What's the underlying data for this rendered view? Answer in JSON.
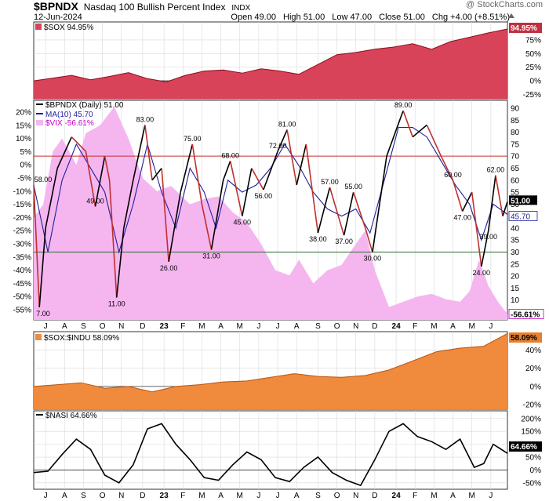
{
  "header": {
    "symbol": "$BPNDX",
    "name": "Nasdaq 100 Bullish Percent Index",
    "exchange": "INDX",
    "date": "12-Jun-2024",
    "open_label": "Open",
    "open": "49.00",
    "high_label": "High",
    "high": "51.00",
    "low_label": "Low",
    "low": "47.00",
    "close_label": "Close",
    "close": "51.00",
    "chg_label": "Chg",
    "chg": "+4.00 (+8.51%)",
    "watermark": "@ StockCharts.com"
  },
  "colors": {
    "sox_fill": "#d8435a",
    "sox_line": "#8a1020",
    "bpndx_line": "#000000",
    "ma_line": "#1f1f9a",
    "vix_fill": "#f5b6f0",
    "vix_text": "#c000c0",
    "ratio_fill": "#f08a3c",
    "ratio_line": "#b85510",
    "nasi_line": "#000000",
    "hline_red": "#c0302c",
    "hline_green": "#2a6a2a",
    "grid": "#d9d9d9",
    "panel_bg": "#ffffff"
  },
  "chart_data": [
    {
      "id": "sox",
      "type": "area",
      "legend": "$SOX 94.95%",
      "last_label": "94.95%",
      "y_ticks": [
        "75%",
        "50%",
        "25%",
        "0%",
        "-25%"
      ],
      "y_tick_values": [
        75,
        50,
        25,
        0,
        -25
      ],
      "ylim": [
        -33,
        108
      ],
      "x": [
        0,
        0.04,
        0.08,
        0.12,
        0.16,
        0.2,
        0.24,
        0.28,
        0.32,
        0.36,
        0.4,
        0.44,
        0.48,
        0.52,
        0.56,
        0.6,
        0.64,
        0.68,
        0.72,
        0.76,
        0.8,
        0.84,
        0.88,
        0.92,
        0.96,
        1.0
      ],
      "values": [
        0,
        5,
        10,
        2,
        8,
        15,
        4,
        -2,
        10,
        18,
        20,
        14,
        22,
        18,
        12,
        30,
        48,
        52,
        58,
        62,
        68,
        58,
        72,
        80,
        88,
        95
      ]
    },
    {
      "id": "bpndx",
      "type": "line",
      "legend": [
        "$BPNDX (Daily) 51.00",
        "MA(10) 45.70",
        "$VIX -56.61%"
      ],
      "left_ticks": [
        "20%",
        "15%",
        "10%",
        "5%",
        "0%",
        "-5%",
        "-10%",
        "-15%",
        "-20%",
        "-25%",
        "-30%",
        "-35%",
        "-40%",
        "-45%",
        "-50%",
        "-55%"
      ],
      "left_tick_values": [
        20,
        15,
        10,
        5,
        0,
        -5,
        -10,
        -15,
        -20,
        -25,
        -30,
        -35,
        -40,
        -45,
        -50,
        -55
      ],
      "left_ylim": [
        -57.5,
        22.5
      ],
      "right_ticks": [
        "90",
        "85",
        "80",
        "75",
        "70",
        "65",
        "60",
        "55",
        "50",
        "45",
        "40",
        "35",
        "30",
        "25",
        "20",
        "15",
        "10",
        "5"
      ],
      "right_tick_values": [
        90,
        85,
        80,
        75,
        70,
        65,
        60,
        55,
        50,
        45,
        40,
        35,
        30,
        25,
        20,
        15,
        10,
        5
      ],
      "last_labels": [
        "51.00",
        "45.70",
        "-56.61%"
      ],
      "vix_last": -56.61,
      "bpndx_last": 51,
      "ma_last": 45.7,
      "hline_upper": 70,
      "hline_lower": 30,
      "bpndx_points": [
        {
          "x": 0.0,
          "v": 58
        },
        {
          "x": 0.012,
          "v": 7
        },
        {
          "x": 0.025,
          "v": 40
        },
        {
          "x": 0.05,
          "v": 65
        },
        {
          "x": 0.08,
          "v": 78
        },
        {
          "x": 0.11,
          "v": 72
        },
        {
          "x": 0.13,
          "v": 49
        },
        {
          "x": 0.15,
          "v": 70
        },
        {
          "x": 0.16,
          "v": 60
        },
        {
          "x": 0.175,
          "v": 11
        },
        {
          "x": 0.19,
          "v": 40
        },
        {
          "x": 0.21,
          "v": 60
        },
        {
          "x": 0.235,
          "v": 83
        },
        {
          "x": 0.25,
          "v": 60
        },
        {
          "x": 0.27,
          "v": 65
        },
        {
          "x": 0.285,
          "v": 26
        },
        {
          "x": 0.31,
          "v": 55
        },
        {
          "x": 0.335,
          "v": 75
        },
        {
          "x": 0.355,
          "v": 50
        },
        {
          "x": 0.375,
          "v": 31
        },
        {
          "x": 0.4,
          "v": 60
        },
        {
          "x": 0.415,
          "v": 68
        },
        {
          "x": 0.44,
          "v": 45
        },
        {
          "x": 0.46,
          "v": 65
        },
        {
          "x": 0.485,
          "v": 56
        },
        {
          "x": 0.515,
          "v": 72
        },
        {
          "x": 0.535,
          "v": 81
        },
        {
          "x": 0.555,
          "v": 58
        },
        {
          "x": 0.575,
          "v": 75
        },
        {
          "x": 0.6,
          "v": 38
        },
        {
          "x": 0.625,
          "v": 57
        },
        {
          "x": 0.655,
          "v": 37
        },
        {
          "x": 0.675,
          "v": 55
        },
        {
          "x": 0.7,
          "v": 40
        },
        {
          "x": 0.715,
          "v": 30
        },
        {
          "x": 0.745,
          "v": 70
        },
        {
          "x": 0.78,
          "v": 89
        },
        {
          "x": 0.8,
          "v": 78
        },
        {
          "x": 0.83,
          "v": 83
        },
        {
          "x": 0.86,
          "v": 70
        },
        {
          "x": 0.885,
          "v": 60
        },
        {
          "x": 0.905,
          "v": 47
        },
        {
          "x": 0.925,
          "v": 55
        },
        {
          "x": 0.945,
          "v": 24
        },
        {
          "x": 0.96,
          "v": 39
        },
        {
          "x": 0.975,
          "v": 62
        },
        {
          "x": 0.99,
          "v": 45
        },
        {
          "x": 1.0,
          "v": 51
        }
      ],
      "ma_points": [
        {
          "x": 0.0,
          "v": 58
        },
        {
          "x": 0.03,
          "v": 30
        },
        {
          "x": 0.06,
          "v": 60
        },
        {
          "x": 0.09,
          "v": 75
        },
        {
          "x": 0.12,
          "v": 65
        },
        {
          "x": 0.15,
          "v": 55
        },
        {
          "x": 0.18,
          "v": 30
        },
        {
          "x": 0.21,
          "v": 50
        },
        {
          "x": 0.24,
          "v": 75
        },
        {
          "x": 0.27,
          "v": 55
        },
        {
          "x": 0.3,
          "v": 40
        },
        {
          "x": 0.33,
          "v": 65
        },
        {
          "x": 0.36,
          "v": 55
        },
        {
          "x": 0.385,
          "v": 40
        },
        {
          "x": 0.41,
          "v": 60
        },
        {
          "x": 0.44,
          "v": 55
        },
        {
          "x": 0.47,
          "v": 58
        },
        {
          "x": 0.5,
          "v": 65
        },
        {
          "x": 0.53,
          "v": 75
        },
        {
          "x": 0.56,
          "v": 66
        },
        {
          "x": 0.59,
          "v": 55
        },
        {
          "x": 0.62,
          "v": 48
        },
        {
          "x": 0.65,
          "v": 45
        },
        {
          "x": 0.68,
          "v": 48
        },
        {
          "x": 0.71,
          "v": 38
        },
        {
          "x": 0.74,
          "v": 60
        },
        {
          "x": 0.77,
          "v": 82
        },
        {
          "x": 0.8,
          "v": 82
        },
        {
          "x": 0.83,
          "v": 78
        },
        {
          "x": 0.86,
          "v": 68
        },
        {
          "x": 0.89,
          "v": 58
        },
        {
          "x": 0.92,
          "v": 50
        },
        {
          "x": 0.945,
          "v": 35
        },
        {
          "x": 0.97,
          "v": 50
        },
        {
          "x": 1.0,
          "v": 45.7
        }
      ],
      "vix_points": [
        {
          "x": 0.0,
          "v": -20
        },
        {
          "x": 0.02,
          "v": -15
        },
        {
          "x": 0.04,
          "v": 5
        },
        {
          "x": 0.06,
          "v": 10
        },
        {
          "x": 0.09,
          "v": 0
        },
        {
          "x": 0.11,
          "v": 12
        },
        {
          "x": 0.14,
          "v": 15
        },
        {
          "x": 0.17,
          "v": 22
        },
        {
          "x": 0.2,
          "v": 10
        },
        {
          "x": 0.23,
          "v": -5
        },
        {
          "x": 0.26,
          "v": -10
        },
        {
          "x": 0.29,
          "v": -8
        },
        {
          "x": 0.33,
          "v": -15
        },
        {
          "x": 0.36,
          "v": -13
        },
        {
          "x": 0.39,
          "v": -12
        },
        {
          "x": 0.42,
          "v": -18
        },
        {
          "x": 0.45,
          "v": -22
        },
        {
          "x": 0.48,
          "v": -30
        },
        {
          "x": 0.51,
          "v": -40
        },
        {
          "x": 0.54,
          "v": -42
        },
        {
          "x": 0.56,
          "v": -36
        },
        {
          "x": 0.59,
          "v": -45
        },
        {
          "x": 0.62,
          "v": -40
        },
        {
          "x": 0.65,
          "v": -38
        },
        {
          "x": 0.68,
          "v": -30
        },
        {
          "x": 0.7,
          "v": -25
        },
        {
          "x": 0.72,
          "v": -40
        },
        {
          "x": 0.75,
          "v": -54
        },
        {
          "x": 0.78,
          "v": -52
        },
        {
          "x": 0.81,
          "v": -50
        },
        {
          "x": 0.84,
          "v": -49
        },
        {
          "x": 0.87,
          "v": -51
        },
        {
          "x": 0.9,
          "v": -52
        },
        {
          "x": 0.92,
          "v": -48
        },
        {
          "x": 0.94,
          "v": -36
        },
        {
          "x": 0.96,
          "v": -46
        },
        {
          "x": 0.98,
          "v": -52
        },
        {
          "x": 1.0,
          "v": -56.61
        }
      ],
      "annotations": [
        {
          "x": 0.0,
          "v": 58,
          "text": "58.00",
          "pos": "above"
        },
        {
          "x": 0.012,
          "v": 7,
          "text": "7.00",
          "pos": "below"
        },
        {
          "x": 0.13,
          "v": 49,
          "text": "49.00",
          "pos": "above"
        },
        {
          "x": 0.175,
          "v": 11,
          "text": "11.00",
          "pos": "below"
        },
        {
          "x": 0.235,
          "v": 83,
          "text": "83.00",
          "pos": "above"
        },
        {
          "x": 0.285,
          "v": 26,
          "text": "26.00",
          "pos": "below"
        },
        {
          "x": 0.335,
          "v": 75,
          "text": "75.00",
          "pos": "above"
        },
        {
          "x": 0.375,
          "v": 31,
          "text": "31.00",
          "pos": "below"
        },
        {
          "x": 0.415,
          "v": 68,
          "text": "68.00",
          "pos": "above"
        },
        {
          "x": 0.44,
          "v": 45,
          "text": "45.00",
          "pos": "below"
        },
        {
          "x": 0.485,
          "v": 56,
          "text": "56.00",
          "pos": "below"
        },
        {
          "x": 0.515,
          "v": 72,
          "text": "72.00",
          "pos": "above"
        },
        {
          "x": 0.535,
          "v": 81,
          "text": "81.00",
          "pos": "above"
        },
        {
          "x": 0.6,
          "v": 38,
          "text": "38.00",
          "pos": "below"
        },
        {
          "x": 0.625,
          "v": 57,
          "text": "57.00",
          "pos": "above"
        },
        {
          "x": 0.655,
          "v": 37,
          "text": "37.00",
          "pos": "below"
        },
        {
          "x": 0.675,
          "v": 55,
          "text": "55.00",
          "pos": "above"
        },
        {
          "x": 0.715,
          "v": 30,
          "text": "30.00",
          "pos": "below"
        },
        {
          "x": 0.78,
          "v": 89,
          "text": "89.00",
          "pos": "above"
        },
        {
          "x": 0.885,
          "v": 60,
          "text": "60.00",
          "pos": "above"
        },
        {
          "x": 0.905,
          "v": 47,
          "text": "47.00",
          "pos": "below"
        },
        {
          "x": 0.945,
          "v": 24,
          "text": "24.00",
          "pos": "below"
        },
        {
          "x": 0.96,
          "v": 39,
          "text": "39.00",
          "pos": "below"
        },
        {
          "x": 0.975,
          "v": 62,
          "text": "62.00",
          "pos": "above"
        }
      ]
    },
    {
      "id": "sox_indu",
      "type": "area",
      "legend": "$SOX:$INDU 58.09%",
      "last_label": "58.09%",
      "y_ticks": [
        "40%",
        "20%",
        "0%",
        "-20%"
      ],
      "y_tick_values": [
        40,
        20,
        0,
        -20
      ],
      "ylim": [
        -25,
        60
      ],
      "x": [
        0,
        0.05,
        0.1,
        0.15,
        0.2,
        0.25,
        0.3,
        0.35,
        0.4,
        0.45,
        0.5,
        0.55,
        0.6,
        0.65,
        0.7,
        0.75,
        0.8,
        0.85,
        0.9,
        0.95,
        1.0
      ],
      "values": [
        0,
        2,
        4,
        -2,
        0,
        -6,
        0,
        2,
        5,
        6,
        10,
        14,
        11,
        10,
        12,
        18,
        28,
        38,
        42,
        44,
        58
      ]
    },
    {
      "id": "nasi",
      "type": "line",
      "legend": "$NASI 64.66%",
      "last_label": "64.66%",
      "y_ticks": [
        "200%",
        "150%",
        "100%",
        "50%",
        "0%",
        "-50%"
      ],
      "y_tick_values": [
        200,
        150,
        100,
        50,
        0,
        -50
      ],
      "ylim": [
        -75,
        230
      ],
      "hline": 0,
      "x": [
        0,
        0.03,
        0.06,
        0.09,
        0.12,
        0.15,
        0.18,
        0.21,
        0.24,
        0.27,
        0.3,
        0.33,
        0.36,
        0.39,
        0.42,
        0.45,
        0.48,
        0.51,
        0.54,
        0.57,
        0.6,
        0.63,
        0.66,
        0.69,
        0.72,
        0.75,
        0.78,
        0.81,
        0.84,
        0.87,
        0.9,
        0.93,
        0.95,
        0.97,
        1.0
      ],
      "values": [
        -10,
        -5,
        60,
        120,
        80,
        -20,
        -50,
        20,
        160,
        180,
        100,
        40,
        -30,
        -40,
        20,
        70,
        40,
        -30,
        -45,
        10,
        50,
        -10,
        -40,
        -60,
        40,
        150,
        180,
        130,
        110,
        80,
        120,
        10,
        25,
        100,
        64.66
      ]
    }
  ],
  "x_axis": {
    "labels": [
      "J",
      "A",
      "S",
      "O",
      "N",
      "D",
      "23",
      "F",
      "M",
      "A",
      "M",
      "J",
      "J",
      "A",
      "S",
      "O",
      "N",
      "D",
      "24",
      "F",
      "M",
      "A",
      "M",
      "J"
    ],
    "positions": [
      0.025,
      0.065,
      0.105,
      0.145,
      0.185,
      0.23,
      0.275,
      0.315,
      0.355,
      0.395,
      0.435,
      0.475,
      0.515,
      0.555,
      0.6,
      0.64,
      0.68,
      0.72,
      0.765,
      0.805,
      0.845,
      0.885,
      0.925,
      0.965
    ],
    "bold": [
      "23",
      "24"
    ]
  }
}
